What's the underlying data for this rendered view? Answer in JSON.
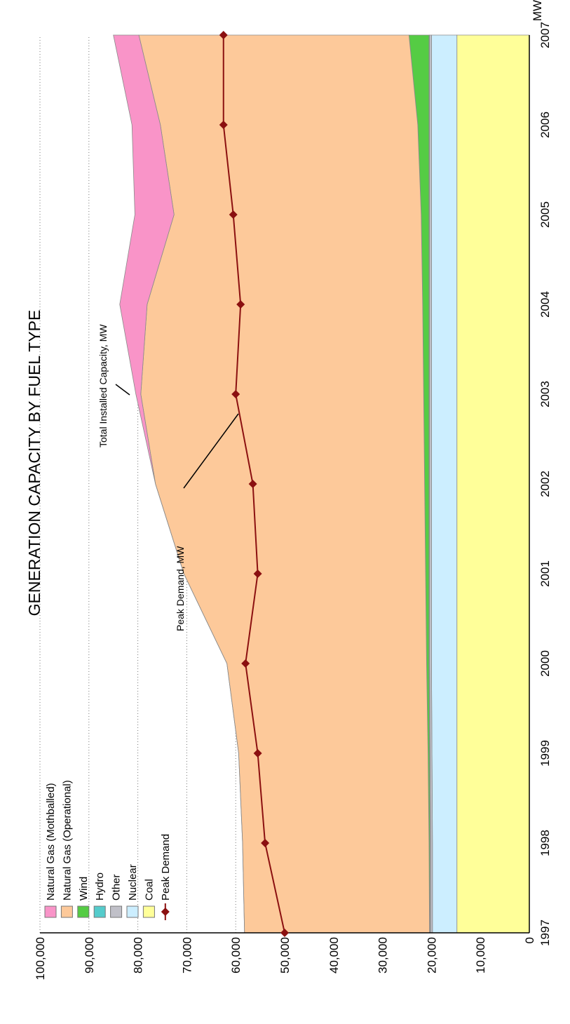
{
  "chart_data": {
    "type": "area",
    "title": "GENERATION CAPACITY BY FUEL TYPE",
    "ylabel": "MW",
    "xlabel": "",
    "x": [
      1997,
      1998,
      1999,
      2000,
      2001,
      2002,
      2003,
      2004,
      2005,
      2006,
      2007
    ],
    "x_tick_labels": [
      "1997",
      "1998",
      "1999",
      "2000",
      "2001",
      "2002",
      "2003",
      "2004",
      "2005",
      "2006",
      "2007"
    ],
    "ylim": [
      0,
      100000
    ],
    "y_ticks": [
      0,
      10000,
      20000,
      30000,
      40000,
      50000,
      60000,
      70000,
      80000,
      90000,
      100000
    ],
    "y_tick_labels": [
      "0",
      "10,000",
      "20,000",
      "30,000",
      "40,000",
      "50,000",
      "60,000",
      "70,000",
      "80,000",
      "90,000",
      "100,000"
    ],
    "grid": "horizontal dotted",
    "legend_position": "top-left",
    "stacked_series": [
      {
        "name": "Coal",
        "color": "#ffff99",
        "values": [
          14800,
          14800,
          14800,
          14800,
          14800,
          14800,
          14800,
          14800,
          14800,
          14800,
          14800
        ]
      },
      {
        "name": "Nuclear",
        "color": "#cceeff",
        "values": [
          5000,
          5000,
          5100,
          5200,
          5200,
          5200,
          5200,
          5200,
          5200,
          5200,
          5200
        ]
      },
      {
        "name": "Other",
        "color": "#c0c0c8",
        "values": [
          400,
          400,
          400,
          400,
          400,
          400,
          400,
          400,
          400,
          400,
          400
        ]
      },
      {
        "name": "Hydro",
        "color": "#55cccc",
        "values": [
          100,
          100,
          100,
          100,
          100,
          100,
          100,
          100,
          100,
          100,
          100
        ]
      },
      {
        "name": "Wind",
        "color": "#55cc44",
        "values": [
          100,
          200,
          300,
          500,
          700,
          900,
          1100,
          1300,
          1600,
          2300,
          4100
        ]
      },
      {
        "name": "Natural Gas (Operational)",
        "color": "#fdc99a",
        "values": [
          37800,
          38100,
          38700,
          40800,
          49400,
          55000,
          57800,
          56300,
          50500,
          52600,
          55200
        ]
      },
      {
        "name": "Natural Gas (Mothballed)",
        "color": "#f994c8",
        "values": [
          0,
          0,
          0,
          0,
          0,
          0,
          1000,
          5600,
          8000,
          5800,
          5200
        ]
      }
    ],
    "line_series": {
      "name": "Peak Demand",
      "color": "#8b1010",
      "values": [
        50000,
        54000,
        55500,
        58000,
        55500,
        56500,
        60000,
        59000,
        60500,
        62500,
        62500
      ]
    },
    "legend_order": [
      "Natural Gas (Mothballed)",
      "Natural Gas (Operational)",
      "Wind",
      "Hydro",
      "Other",
      "Nuclear",
      "Coal",
      "Peak Demand"
    ],
    "annotations": [
      {
        "text": "Total Installed Capacity, MW",
        "points_to_year": 2003
      },
      {
        "text": "Peak Demand, MW",
        "points_to_year": 2003
      }
    ]
  }
}
